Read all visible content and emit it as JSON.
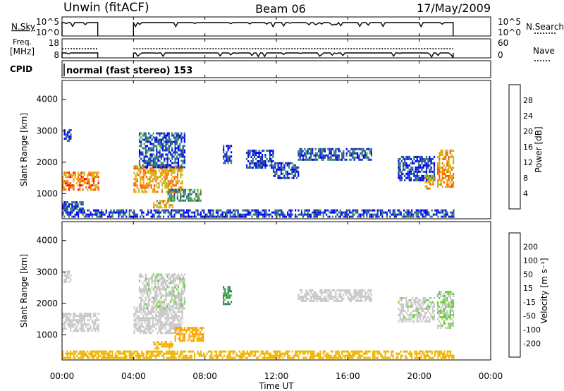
{
  "header": {
    "station": "Unwin (fitACF)",
    "beam": "Beam 06",
    "date": "17/May/2009"
  },
  "left_labels": {
    "nsky": "N.Sky",
    "freq_line1": "Freq.",
    "freq_line2": "[MHz]",
    "cpid": "CPID"
  },
  "right_labels": {
    "nsearch": "N.Search",
    "nave": "Nave"
  },
  "cpid_text": "normal (fast stereo) 153",
  "colors": {
    "power": [
      "#0000ff",
      "#1a3fb0",
      "#3a7a7a",
      "#44a050",
      "#b8c020",
      "#ff9e00",
      "#ff5a00",
      "#ff0000"
    ],
    "velocity": [
      "#ff0000",
      "#ff5a00",
      "#ff9e00",
      "#f0b400",
      "#c8c8c8",
      "#66d030",
      "#2e8b57",
      "#3050c0",
      "#1a1ad0"
    ]
  },
  "chart_data": [
    {
      "type": "line",
      "panel": "noise",
      "ylabel": "N.Sky",
      "yticks_left": [
        "10^5",
        "10^0"
      ],
      "yticks_right": [
        "10^5",
        "10^0"
      ],
      "right_label": "N.Search",
      "x_range_hours": [
        0,
        24
      ],
      "coverage_hours": [
        [
          0.0,
          2.0
        ],
        [
          4.0,
          21.9
        ]
      ]
    },
    {
      "type": "line",
      "panel": "frequency",
      "ylabel": "Freq. [MHz]",
      "yticks_left": [
        "18",
        "8"
      ],
      "yticks_right": [
        "60",
        "0"
      ],
      "right_label": "Nave",
      "x_range_hours": [
        0,
        24
      ],
      "coverage_hours": [
        [
          0.0,
          2.0
        ],
        [
          4.0,
          21.9
        ]
      ]
    },
    {
      "type": "heatmap",
      "panel": "power",
      "ylabel": "Slant Range [km]",
      "yticks": [
        "1000",
        "2000",
        "3000",
        "4000"
      ],
      "ylim": [
        200,
        4600
      ],
      "colorbar_label": "Power [dB]",
      "colorbar_ticks": [
        "4",
        "8",
        "12",
        "16",
        "20",
        "24",
        "28"
      ],
      "colorbar_range": [
        0,
        32
      ],
      "x_range_hours": [
        0,
        24
      ],
      "regions": [
        {
          "t": [
            0.0,
            2.0
          ],
          "r": [
            1100,
            1700
          ],
          "level": 24
        },
        {
          "t": [
            0.1,
            0.5
          ],
          "r": [
            2650,
            3050
          ],
          "level": 6
        },
        {
          "t": [
            0.0,
            1.2
          ],
          "r": [
            520,
            760
          ],
          "level": 6
        },
        {
          "t": [
            4.0,
            6.7
          ],
          "r": [
            1050,
            1900
          ],
          "level": 22
        },
        {
          "t": [
            4.3,
            6.9
          ],
          "r": [
            1850,
            2950
          ],
          "level": 7
        },
        {
          "t": [
            5.9,
            7.8
          ],
          "r": [
            800,
            1150
          ],
          "level": 12
        },
        {
          "t": [
            5.1,
            6.2
          ],
          "r": [
            550,
            800
          ],
          "level": 20
        },
        {
          "t": [
            9.0,
            9.5
          ],
          "r": [
            2000,
            2550
          ],
          "level": 6
        },
        {
          "t": [
            10.3,
            11.8
          ],
          "r": [
            1850,
            2400
          ],
          "level": 6
        },
        {
          "t": [
            13.2,
            17.3
          ],
          "r": [
            2050,
            2450
          ],
          "level": 7
        },
        {
          "t": [
            11.8,
            13.2
          ],
          "r": [
            1500,
            2000
          ],
          "level": 5
        },
        {
          "t": [
            18.8,
            20.8
          ],
          "r": [
            1450,
            2200
          ],
          "level": 6
        },
        {
          "t": [
            20.3,
            20.9
          ],
          "r": [
            1150,
            1600
          ],
          "level": 20
        },
        {
          "t": [
            21.0,
            21.9
          ],
          "r": [
            1200,
            2400
          ],
          "level": 22
        },
        {
          "t": [
            0.0,
            21.9
          ],
          "r": [
            250,
            500
          ],
          "level": 6
        }
      ]
    },
    {
      "type": "heatmap",
      "panel": "velocity",
      "ylabel": "Slant Range [km]",
      "yticks": [
        "1000",
        "2000",
        "3000",
        "4000"
      ],
      "ylim": [
        200,
        4600
      ],
      "xlabel": "Time UT",
      "xticks": [
        "00:00",
        "04:00",
        "08:00",
        "12:00",
        "16:00",
        "20:00",
        "00:00"
      ],
      "colorbar_label": "Velocity [m s⁻¹]",
      "colorbar_ticks": [
        "-200",
        "-100",
        "-50",
        "-15",
        "15",
        "50",
        "100",
        "200"
      ],
      "x_range_hours": [
        0,
        24
      ],
      "regions": [
        {
          "t": [
            0.0,
            2.0
          ],
          "r": [
            1100,
            1700
          ],
          "level": 0
        },
        {
          "t": [
            0.1,
            0.5
          ],
          "r": [
            2650,
            3050
          ],
          "level": 0
        },
        {
          "t": [
            4.0,
            6.7
          ],
          "r": [
            1050,
            1900
          ],
          "level": 0
        },
        {
          "t": [
            4.3,
            6.9
          ],
          "r": [
            1850,
            2950
          ],
          "level": 5
        },
        {
          "t": [
            6.3,
            7.9
          ],
          "r": [
            800,
            1250
          ],
          "level": -50
        },
        {
          "t": [
            5.1,
            6.2
          ],
          "r": [
            550,
            800
          ],
          "level": -40
        },
        {
          "t": [
            9.0,
            9.5
          ],
          "r": [
            2000,
            2550
          ],
          "level": 60
        },
        {
          "t": [
            13.2,
            17.3
          ],
          "r": [
            2050,
            2450
          ],
          "level": 0
        },
        {
          "t": [
            18.8,
            20.8
          ],
          "r": [
            1450,
            2200
          ],
          "level": 5
        },
        {
          "t": [
            21.0,
            21.9
          ],
          "r": [
            1200,
            2400
          ],
          "level": 10
        },
        {
          "t": [
            0.0,
            21.9
          ],
          "r": [
            250,
            500
          ],
          "level": -30
        }
      ]
    }
  ]
}
